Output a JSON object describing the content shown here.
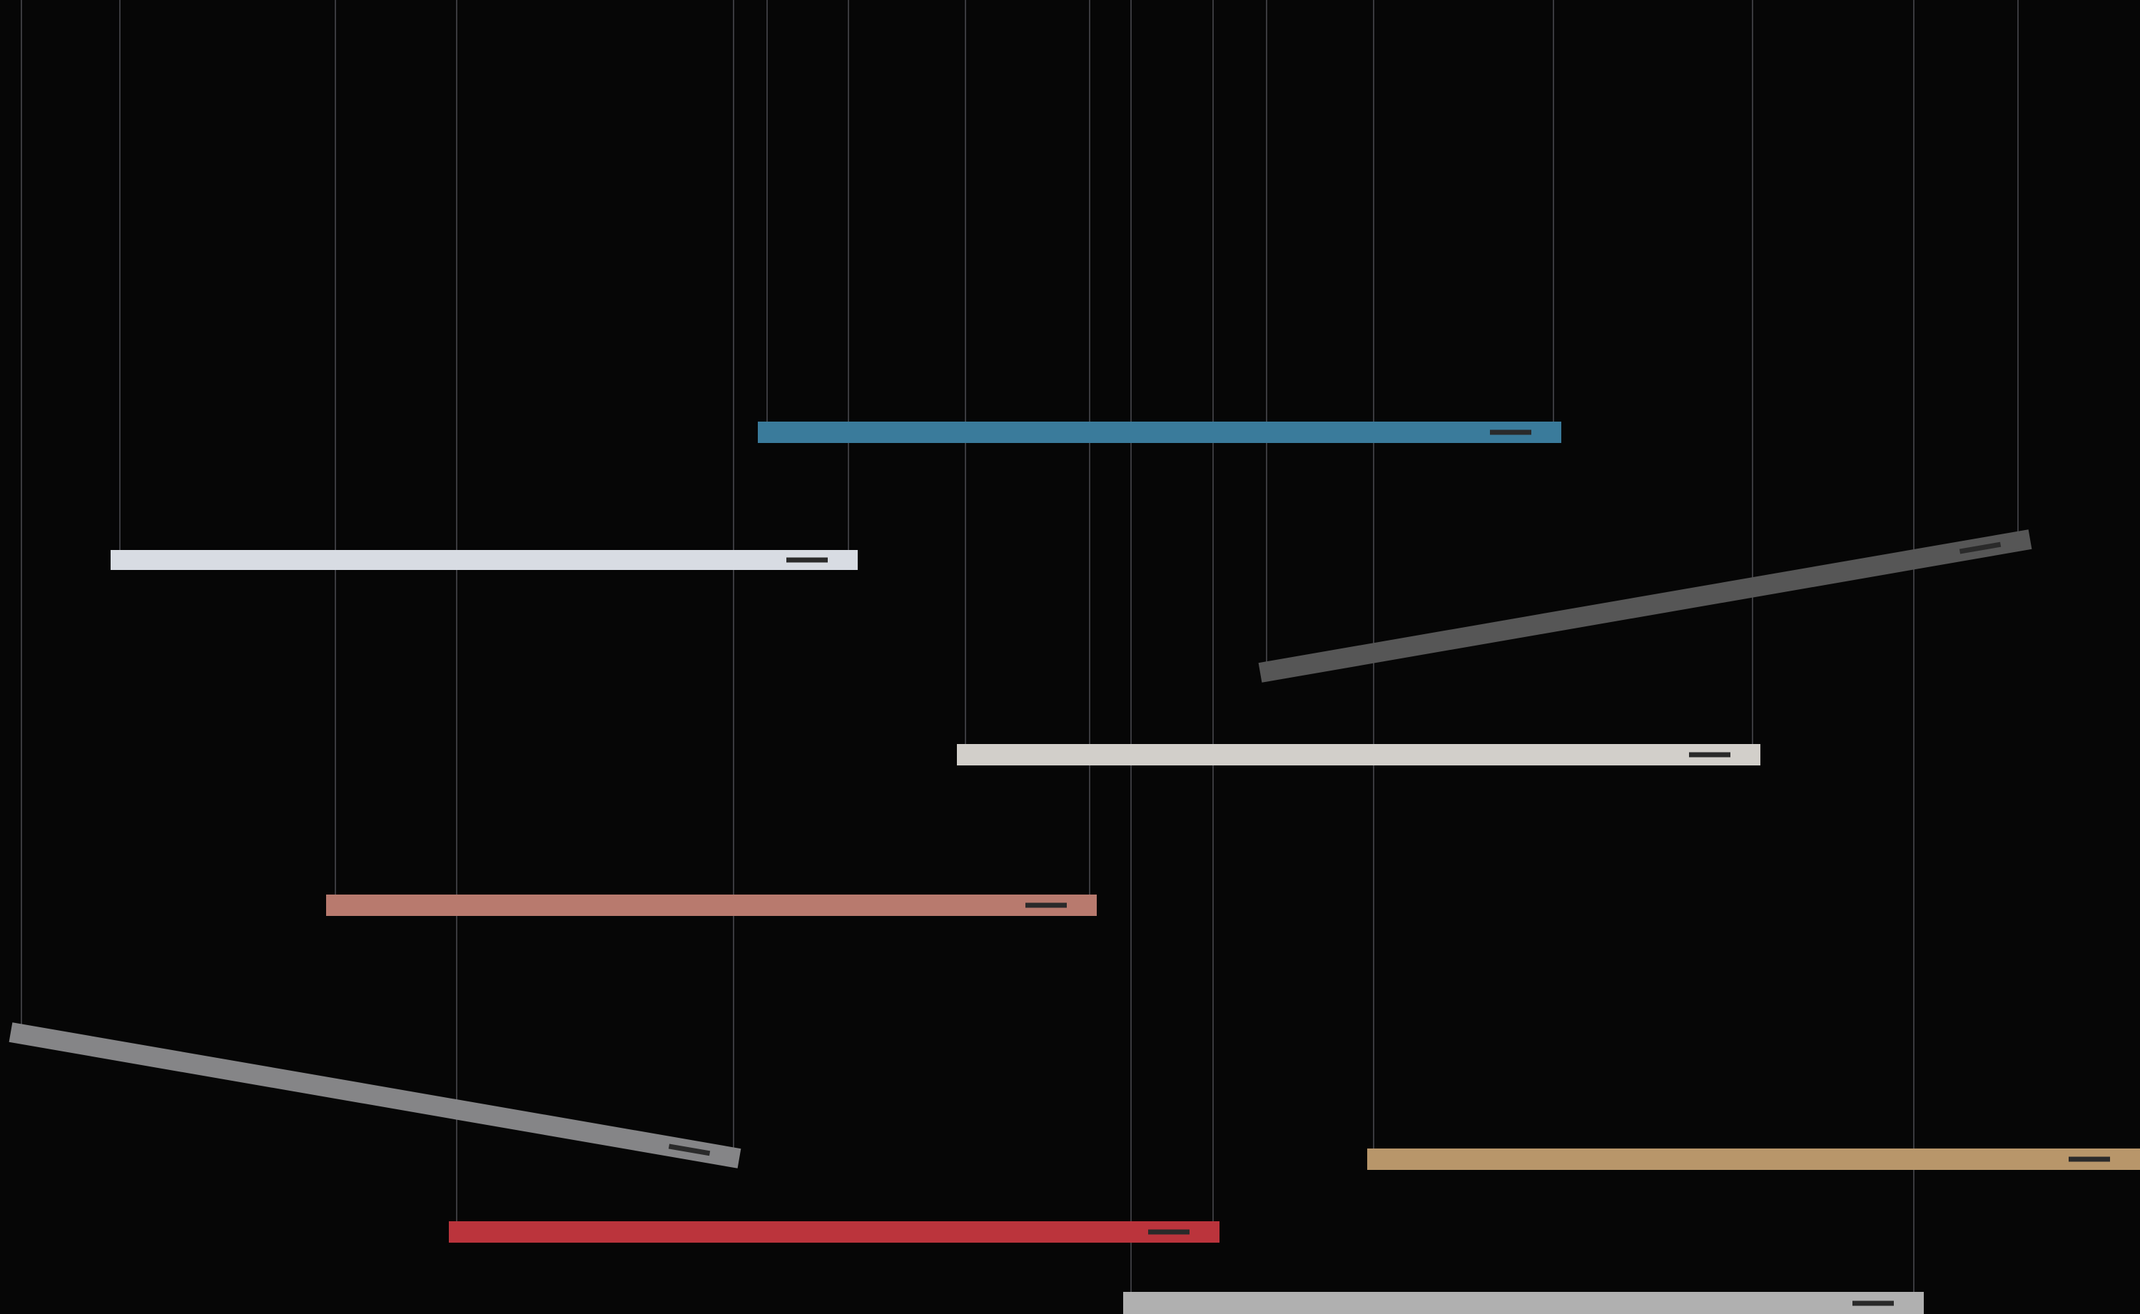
{
  "scene": {
    "background": "#060606",
    "wire_color": "#3a3a3e",
    "slot_color": "#2a2a2a",
    "bars": [
      {
        "id": "blue",
        "color": "#3a7b9b"
      },
      {
        "id": "white",
        "color": "#d8dce3"
      },
      {
        "id": "dark-gray",
        "color": "#565656"
      },
      {
        "id": "beige",
        "color": "#d2cfca"
      },
      {
        "id": "rose",
        "color": "#b87a6e"
      },
      {
        "id": "gray",
        "color": "#858587"
      },
      {
        "id": "tan",
        "color": "#b8966a"
      },
      {
        "id": "red",
        "color": "#bb343c"
      },
      {
        "id": "light-gray",
        "color": "#b0b0b0"
      }
    ]
  }
}
